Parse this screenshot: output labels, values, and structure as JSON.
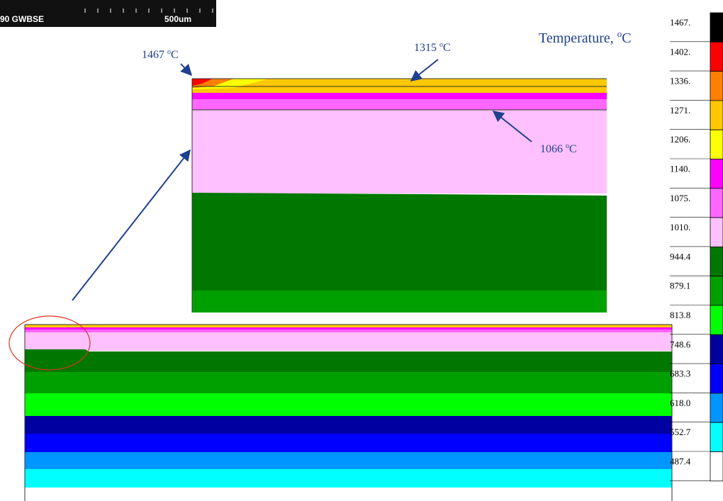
{
  "scale_bar": {
    "label": "90 GWBSE",
    "length": "500um"
  },
  "title": {
    "text": "Temperature, ",
    "sup": "o",
    "unit": "C"
  },
  "annotations": [
    {
      "value": "1467",
      "sup": "o",
      "unit": "C"
    },
    {
      "value": "1315",
      "sup": "o",
      "unit": "C"
    },
    {
      "value": "1066",
      "sup": "o",
      "unit": "C"
    }
  ],
  "legend": {
    "labels": [
      "1467.",
      "1402.",
      "1336.",
      "1271.",
      "1206.",
      "1140.",
      "1075.",
      "1010.",
      "944.4",
      "879.1",
      "813.8",
      "748.6",
      "683.3",
      "618.0",
      "552.7",
      "487.4"
    ],
    "colors": [
      "#000000",
      "#ff0000",
      "#ff8000",
      "#ffc800",
      "#ffff00",
      "#ff00ff",
      "#ff66ff",
      "#ffc0ff",
      "#007800",
      "#00a000",
      "#00ff00",
      "#0000a0",
      "#0000ff",
      "#0096ff",
      "#00ffff",
      "#ffffff"
    ]
  }
}
